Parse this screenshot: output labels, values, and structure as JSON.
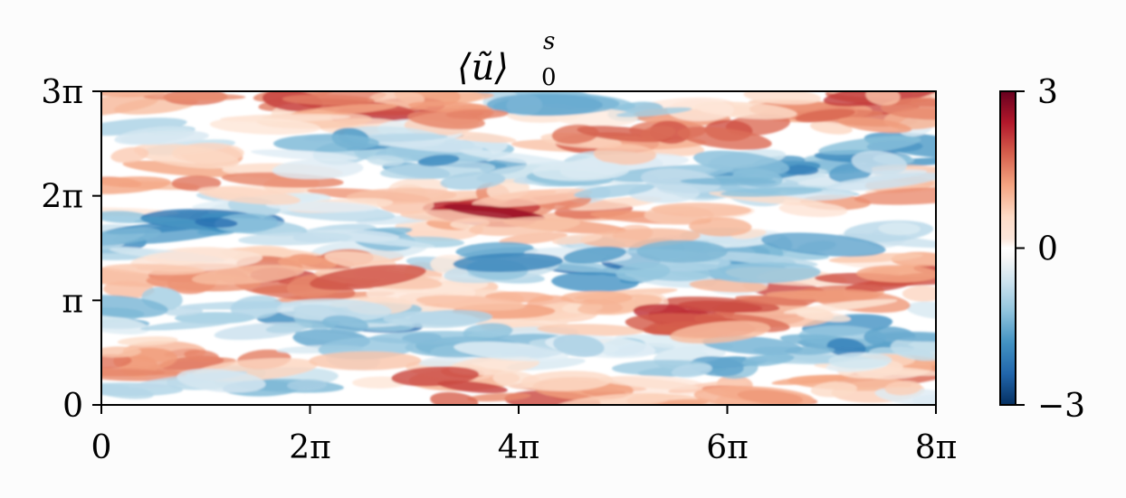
{
  "chart_data": {
    "type": "heatmap",
    "title": {
      "base": "⟨ũ⟩",
      "sup": "s",
      "sub": "0"
    },
    "xlabel": "",
    "ylabel": "",
    "xlim": [
      0,
      25.1327
    ],
    "ylim": [
      0,
      9.4248
    ],
    "x_ticks": [
      {
        "value": 0,
        "label": "0"
      },
      {
        "value": 6.2832,
        "label": "2π"
      },
      {
        "value": 12.5664,
        "label": "4π"
      },
      {
        "value": 18.8496,
        "label": "6π"
      },
      {
        "value": 25.1327,
        "label": "8π"
      }
    ],
    "y_ticks": [
      {
        "value": 0,
        "label": "0"
      },
      {
        "value": 3.1416,
        "label": "π"
      },
      {
        "value": 6.2832,
        "label": "2π"
      },
      {
        "value": 9.4248,
        "label": "3π"
      }
    ],
    "colorbar": {
      "colormap": "RdBu_r",
      "vmin": -3,
      "vmax": 3,
      "ticks": [
        {
          "value": 3,
          "label": "3"
        },
        {
          "value": 0,
          "label": "0"
        },
        {
          "value": -3,
          "label": "−3"
        }
      ]
    },
    "colors": {
      "low": "#053061",
      "mid": "#ffffff",
      "high": "#67001f"
    },
    "field_description": "streamwise-elongated alternating streaks of positive (red) and negative (blue) values, magnitude mostly within ±2",
    "grid": false,
    "legend": "none"
  }
}
